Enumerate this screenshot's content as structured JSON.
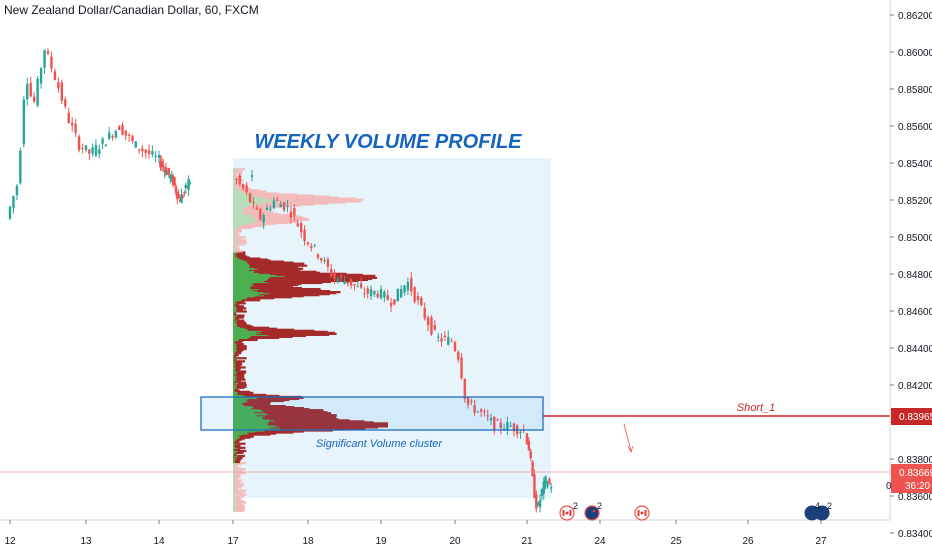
{
  "header": {
    "symbol_title": "New Zealand Dollar/Canadian Dollar, 60, FXCM"
  },
  "annotations": {
    "profile_title": "WEEKLY VOLUME PROFILE",
    "cluster_label": "Significant Volume cluster",
    "order_label": "Short_1"
  },
  "price_axis": {
    "order_price": "0.83965",
    "last_price": "0.83669",
    "countdown": "36:20"
  },
  "events": [
    {
      "name": "canada-flag-event-icon",
      "count": "2"
    },
    {
      "name": "newzealand-flag-event-icon",
      "count": "2"
    },
    {
      "name": "canada-flag-event-icon-2",
      "count": ""
    },
    {
      "name": "newzealand-flag-event-icon-2",
      "count": "2"
    }
  ],
  "colors": {
    "bull": "#26a69a",
    "bear": "#ef5350",
    "profile_title": "#1565c0",
    "order_line": "#c62828",
    "last_price": "#ef5350",
    "profile_box": "#e8f4fb",
    "volume_up": "#4caf50",
    "volume_down": "#a52a2a"
  },
  "chart_data": {
    "type": "candlestick",
    "title": "New Zealand Dollar/Canadian Dollar, 60, FXCM",
    "x_ticks": [
      "12",
      "13",
      "14",
      "17",
      "18",
      "19",
      "20",
      "21",
      "24",
      "25",
      "26",
      "27"
    ],
    "y_ticks": [
      "0.86200",
      "0.86000",
      "0.85800",
      "0.85600",
      "0.85400",
      "0.85200",
      "0.85000",
      "0.84800",
      "0.84600",
      "0.84400",
      "0.84200",
      "0.83800",
      "0.83600",
      "0.83400"
    ],
    "ylim": [
      0.8335,
      0.8622
    ],
    "price_path": [
      [
        12.0,
        0.851
      ],
      [
        12.15,
        0.853
      ],
      [
        12.25,
        0.859
      ],
      [
        12.35,
        0.857
      ],
      [
        12.5,
        0.8602
      ],
      [
        12.65,
        0.8585
      ],
      [
        12.8,
        0.8565
      ],
      [
        12.95,
        0.855
      ],
      [
        13.1,
        0.8545
      ],
      [
        13.3,
        0.8552
      ],
      [
        13.5,
        0.856
      ],
      [
        13.7,
        0.855
      ],
      [
        13.9,
        0.8545
      ],
      [
        14.1,
        0.854
      ],
      [
        14.3,
        0.8535
      ],
      [
        14.5,
        0.853
      ],
      [
        14.7,
        0.852
      ],
      [
        14.9,
        0.8525
      ],
      [
        15.0,
        0.853
      ],
      [
        17.0,
        0.8535
      ],
      [
        17.2,
        0.8525
      ],
      [
        17.4,
        0.851
      ],
      [
        17.6,
        0.852
      ],
      [
        17.8,
        0.8515
      ],
      [
        18.0,
        0.85
      ],
      [
        18.2,
        0.849
      ],
      [
        18.4,
        0.8478
      ],
      [
        18.6,
        0.8476
      ],
      [
        18.8,
        0.847
      ],
      [
        19.0,
        0.847
      ],
      [
        19.2,
        0.8465
      ],
      [
        19.4,
        0.8476
      ],
      [
        19.6,
        0.846
      ],
      [
        19.8,
        0.8445
      ],
      [
        20.0,
        0.8444
      ],
      [
        20.1,
        0.8435
      ],
      [
        20.2,
        0.841
      ],
      [
        20.4,
        0.8405
      ],
      [
        20.6,
        0.8398
      ],
      [
        20.8,
        0.8398
      ],
      [
        21.0,
        0.8395
      ],
      [
        21.1,
        0.8385
      ],
      [
        21.2,
        0.8365
      ],
      [
        21.3,
        0.8352
      ],
      [
        21.4,
        0.8362
      ],
      [
        21.5,
        0.8368
      ],
      [
        21.6,
        0.8366
      ]
    ],
    "volume_profile": {
      "period": "weekly",
      "price_range": [
        0.8352,
        0.8537
      ],
      "high_volume_node_low": 0.839,
      "high_volume_node_high": 0.8406
    },
    "short_order": {
      "label": "Short_1",
      "price": 0.83965
    },
    "last_price": 0.83669
  }
}
